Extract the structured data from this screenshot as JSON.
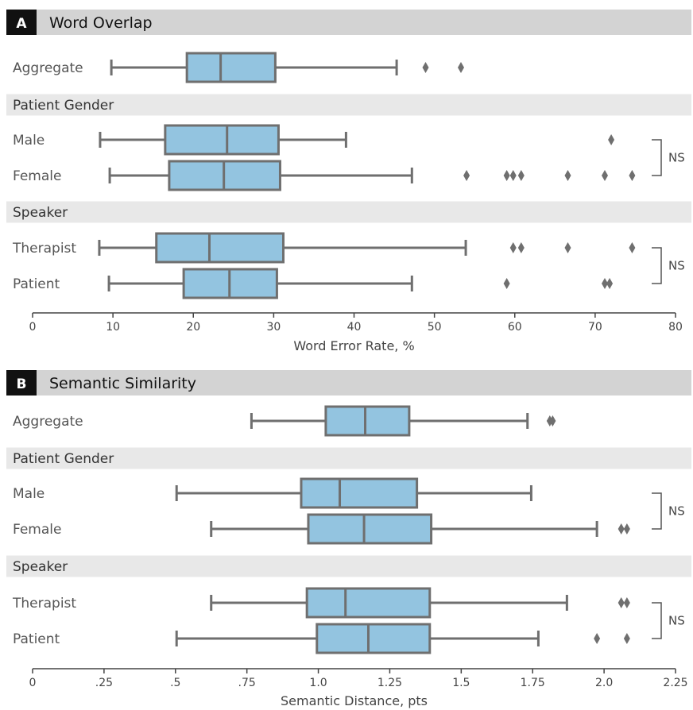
{
  "colors": {
    "box_fill": "#93c4e0",
    "box_edge": "#6f6f6f",
    "header_bg": "#d3d3d3",
    "section_bg": "#e8e8e8",
    "letter_bg": "#111111"
  },
  "chart_data": [
    {
      "type": "box",
      "letter": "A",
      "title": "Word Overlap",
      "xlabel": "Word Error Rate, %",
      "xlim": [
        0,
        80
      ],
      "ticks": [
        0,
        10,
        20,
        30,
        40,
        50,
        60,
        70,
        80
      ],
      "tick_labels": [
        "0",
        "10",
        "20",
        "30",
        "40",
        "50",
        "60",
        "70",
        "80"
      ],
      "groups": [
        {
          "label": "Aggregate",
          "boxes": [
            {
              "label": "Aggregate",
              "whislo": 9.8,
              "q1": 19.2,
              "med": 23.4,
              "q3": 30.2,
              "whishi": 45.3,
              "fliers": [
                48.9,
                53.3
              ]
            }
          ]
        },
        {
          "label": "Patient Gender",
          "test": "NS",
          "boxes": [
            {
              "label": "Male",
              "whislo": 8.4,
              "q1": 16.5,
              "med": 24.2,
              "q3": 30.6,
              "whishi": 39.0,
              "fliers": [
                72.0
              ]
            },
            {
              "label": "Female",
              "whislo": 9.6,
              "q1": 17.0,
              "med": 23.8,
              "q3": 30.8,
              "whishi": 47.2,
              "fliers": [
                54.0,
                59.0,
                59.8,
                60.8,
                66.6,
                71.2,
                74.6
              ]
            }
          ]
        },
        {
          "label": "Speaker",
          "test": "NS",
          "boxes": [
            {
              "label": "Therapist",
              "whislo": 8.3,
              "q1": 15.4,
              "med": 22.0,
              "q3": 31.2,
              "whishi": 53.9,
              "fliers": [
                59.8,
                60.8,
                66.6,
                74.6
              ]
            },
            {
              "label": "Patient",
              "whislo": 9.5,
              "q1": 18.8,
              "med": 24.5,
              "q3": 30.4,
              "whishi": 47.2,
              "fliers": [
                59.0,
                71.2,
                71.8
              ]
            }
          ]
        }
      ]
    },
    {
      "type": "box",
      "letter": "B",
      "title": "Semantic Similarity",
      "xlabel": "Semantic Distance, pts",
      "xlim": [
        0,
        2.25
      ],
      "ticks": [
        0,
        0.25,
        0.5,
        0.75,
        1.0,
        1.25,
        1.5,
        1.75,
        2.0,
        2.25
      ],
      "tick_labels": [
        "0",
        ".25",
        ".5",
        ".75",
        "1.0",
        "1.25",
        "1.5",
        "1.75",
        "2.0",
        "2.25"
      ],
      "groups": [
        {
          "label": "Aggregate",
          "boxes": [
            {
              "label": "Aggregate",
              "whislo": 0.766,
              "q1": 1.026,
              "med": 1.164,
              "q3": 1.318,
              "whishi": 1.732,
              "fliers": [
                1.81,
                1.82
              ]
            }
          ]
        },
        {
          "label": "Patient Gender",
          "test": "NS",
          "boxes": [
            {
              "label": "Male",
              "whislo": 0.504,
              "q1": 0.94,
              "med": 1.075,
              "q3": 1.345,
              "whishi": 1.745,
              "fliers": []
            },
            {
              "label": "Female",
              "whislo": 0.625,
              "q1": 0.965,
              "med": 1.16,
              "q3": 1.395,
              "whishi": 1.975,
              "fliers": [
                2.06,
                2.08
              ]
            }
          ]
        },
        {
          "label": "Speaker",
          "test": "NS",
          "boxes": [
            {
              "label": "Therapist",
              "whislo": 0.625,
              "q1": 0.96,
              "med": 1.095,
              "q3": 1.39,
              "whishi": 1.87,
              "fliers": [
                2.06,
                2.08
              ]
            },
            {
              "label": "Patient",
              "whislo": 0.504,
              "q1": 0.995,
              "med": 1.175,
              "q3": 1.39,
              "whishi": 1.77,
              "fliers": [
                1.975,
                2.08
              ]
            }
          ]
        }
      ]
    }
  ]
}
